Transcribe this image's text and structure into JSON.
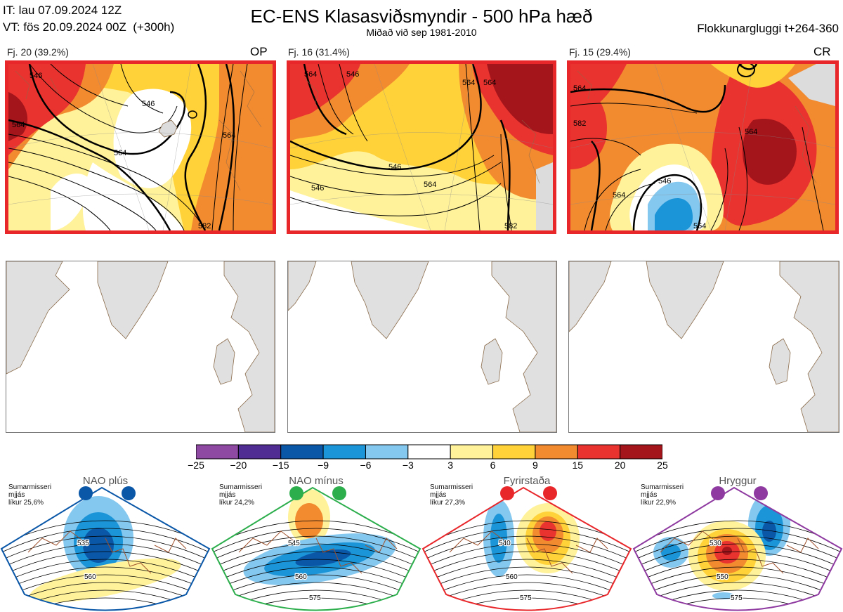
{
  "header": {
    "init_time": "IT: lau 07.09.2024 12Z",
    "valid_time": "VT: fös 20.09.2024 00Z  (+300h)",
    "title": "EC-ENS Klasasviðsmyndir - 500 hPa hæð",
    "subtitle": "Miðað við sep 1981-2010",
    "window": "Flokkunargluggi t+264-360"
  },
  "clusters": [
    {
      "label": "Fj. 20 (39.2%)",
      "tag": "OP",
      "contour_labels": [
        "546",
        "564",
        "546",
        "564",
        "582",
        "564"
      ]
    },
    {
      "label": "Fj. 16 (31.4%)",
      "tag": "",
      "contour_labels": [
        "564",
        "546",
        "546",
        "564",
        "564",
        "546",
        "564",
        "582"
      ]
    },
    {
      "label": "Fj. 15 (29.4%)",
      "tag": "CR",
      "contour_labels": [
        "564",
        "582",
        "546",
        "564",
        "564",
        "564"
      ]
    }
  ],
  "colorbar": {
    "ticks": [
      "−25",
      "−20",
      "−15",
      "−9",
      "−6",
      "−3",
      "3",
      "6",
      "9",
      "15",
      "20",
      "25"
    ],
    "colors": [
      "#8e4aa2",
      "#4f2d92",
      "#0a57a8",
      "#1c95d8",
      "#85c8ef",
      "#ffffff",
      "#fff29a",
      "#ffd23a",
      "#f28a30",
      "#e8332f",
      "#a3141b"
    ]
  },
  "regimes": [
    {
      "name": "NAO plús",
      "season": "Sumarmisseri",
      "note": "mjjás",
      "prob": "líkur 25,6%",
      "color": "#0a57a8",
      "contours": [
        "535",
        "560"
      ]
    },
    {
      "name": "NAO mínus",
      "season": "Sumarmisseri",
      "note": "mjjás",
      "prob": "líkur 24,2%",
      "color": "#2cae4c",
      "contours": [
        "545",
        "560",
        "575"
      ]
    },
    {
      "name": "Fyrirstaða",
      "season": "Sumarmisseri",
      "note": "mjjás",
      "prob": "líkur 27,3%",
      "color": "#e8272b",
      "contours": [
        "540",
        "560",
        "575"
      ]
    },
    {
      "name": "Hryggur",
      "season": "Sumarmisseri",
      "note": "mjjás",
      "prob": "líkur 22,9%",
      "color": "#8e3aa0",
      "contours": [
        "530",
        "550",
        "575"
      ]
    }
  ]
}
